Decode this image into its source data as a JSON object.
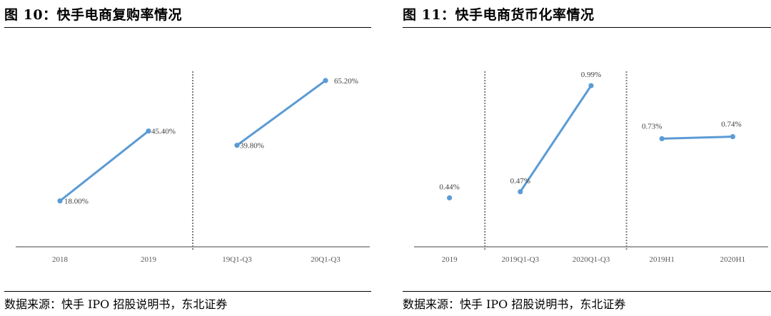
{
  "figures": [
    {
      "title": "图 10：快手电商复购率情况",
      "source": "数据来源：快手 IPO 招股说明书，东北证券",
      "chart_data": {
        "type": "line",
        "categories": [
          "2018",
          "2019",
          "19Q1-Q3",
          "20Q1-Q3"
        ],
        "segments": [
          {
            "categories": [
              "2018",
              "2019"
            ],
            "values": [
              18.0,
              45.4
            ],
            "labels": [
              "18.00%",
              "45.40%"
            ]
          },
          {
            "categories": [
              "19Q1-Q3",
              "20Q1-Q3"
            ],
            "values": [
              39.8,
              65.2
            ],
            "labels": [
              "39.80%",
              "65.20%"
            ]
          }
        ],
        "separators_after": [
          1
        ],
        "ylim": [
          0,
          80
        ],
        "grid": false,
        "color": "#5b9bd5"
      }
    },
    {
      "title": "图 11：快手电商货币化率情况",
      "source": "数据来源：快手 IPO 招股说明书，东北证券",
      "chart_data": {
        "type": "line",
        "categories": [
          "2019",
          "2019Q1-Q3",
          "2020Q1-Q3",
          "2019H1",
          "2020H1"
        ],
        "segments": [
          {
            "categories": [
              "2019"
            ],
            "values": [
              0.44
            ],
            "labels": [
              "0.44%"
            ]
          },
          {
            "categories": [
              "2019Q1-Q3",
              "2020Q1-Q3"
            ],
            "values": [
              0.47,
              0.99
            ],
            "labels": [
              "0.47%",
              "0.99%"
            ]
          },
          {
            "categories": [
              "2019H1",
              "2020H1"
            ],
            "values": [
              0.73,
              0.74
            ],
            "labels": [
              "0.73%",
              "0.74%"
            ]
          }
        ],
        "separators_after": [
          0,
          2
        ],
        "ylim": [
          0.2,
          1.2
        ],
        "grid": false,
        "color": "#5b9bd5"
      }
    }
  ]
}
